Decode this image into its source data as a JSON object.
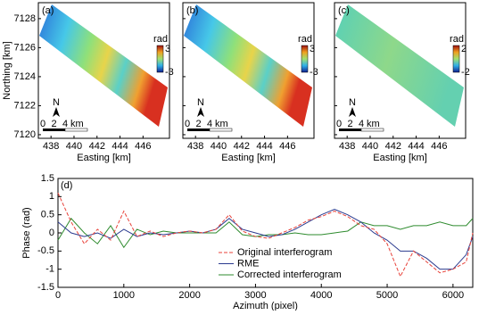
{
  "maps": {
    "ylabel": "Northing [km]",
    "xlabel": "Easting [km]",
    "xlim": [
      436.9,
      448.3
    ],
    "ylim": [
      7119.75,
      7129.1
    ],
    "xticks": [
      438,
      440,
      442,
      444,
      446
    ],
    "yticks": [
      7120,
      7122,
      7124,
      7126,
      7128
    ],
    "scale_bar": {
      "ticks": [
        0,
        2,
        4
      ],
      "unit": "km"
    },
    "north": "N",
    "panels": [
      {
        "label": "(a)",
        "cbar_label": "rad",
        "cbar_max": 3,
        "cbar_min": -3
      },
      {
        "label": "(b)",
        "cbar_label": "rad",
        "cbar_max": 3,
        "cbar_min": -3
      },
      {
        "label": "(c)",
        "cbar_label": "rad",
        "cbar_max": 2,
        "cbar_min": -2
      }
    ]
  },
  "chart_data": {
    "type": "line",
    "label": "(d)",
    "xlabel": "Azimuth (pixel)",
    "ylabel": "Phase (rad)",
    "x": [
      0,
      200,
      400,
      600,
      800,
      1000,
      1200,
      1400,
      1600,
      1800,
      2000,
      2200,
      2400,
      2600,
      2800,
      3000,
      3200,
      3400,
      3600,
      3800,
      4000,
      4200,
      4400,
      4600,
      4800,
      5000,
      5200,
      5400,
      5600,
      5800,
      6000,
      6200,
      6300
    ],
    "series": [
      {
        "name": "Original interferogram",
        "color": "#e8423a",
        "style": "dashed",
        "values": [
          1.1,
          0.3,
          -0.3,
          0.1,
          -0.2,
          0.6,
          -0.1,
          0.05,
          -0.1,
          0,
          0.05,
          0,
          0.1,
          0.5,
          0.05,
          -0.1,
          -0.15,
          0,
          0.15,
          0.35,
          0.45,
          0.6,
          0.45,
          0.2,
          0.1,
          -0.3,
          -1.2,
          -0.5,
          -0.8,
          -1.1,
          -1,
          -0.8,
          0
        ]
      },
      {
        "name": "RME",
        "color": "#2b3b8f",
        "style": "solid",
        "values": [
          0.3,
          0,
          -0.1,
          0,
          -0.15,
          0.1,
          -0.1,
          0,
          -0.05,
          0,
          0.05,
          0,
          0.1,
          0.4,
          0.1,
          0,
          -0.1,
          -0.05,
          0.1,
          0.3,
          0.5,
          0.65,
          0.5,
          0.3,
          0,
          -0.2,
          -0.5,
          -0.5,
          -0.7,
          -1,
          -1,
          -0.6,
          -0.1
        ]
      },
      {
        "name": "Corrected interferogram",
        "color": "#2e8b2e",
        "style": "solid",
        "values": [
          -0.2,
          0.4,
          0,
          -0.3,
          0.2,
          -0.4,
          0.1,
          -0.05,
          0.05,
          0,
          0,
          0,
          0,
          0.3,
          -0.05,
          -0.1,
          -0.05,
          -0.05,
          0,
          -0.05,
          -0.05,
          0,
          0.05,
          0.3,
          0.2,
          0.2,
          0.1,
          0.2,
          0.2,
          0.3,
          0.2,
          0.2,
          0.4
        ]
      }
    ],
    "xlim": [
      0,
      6300
    ],
    "ylim": [
      -1.5,
      1.5
    ],
    "xticks": [
      0,
      1000,
      2000,
      3000,
      4000,
      5000,
      6000
    ],
    "yticks": [
      1.5,
      1,
      0.5,
      0,
      -0.5,
      -1,
      -1.5
    ],
    "legend": "lower-center"
  }
}
